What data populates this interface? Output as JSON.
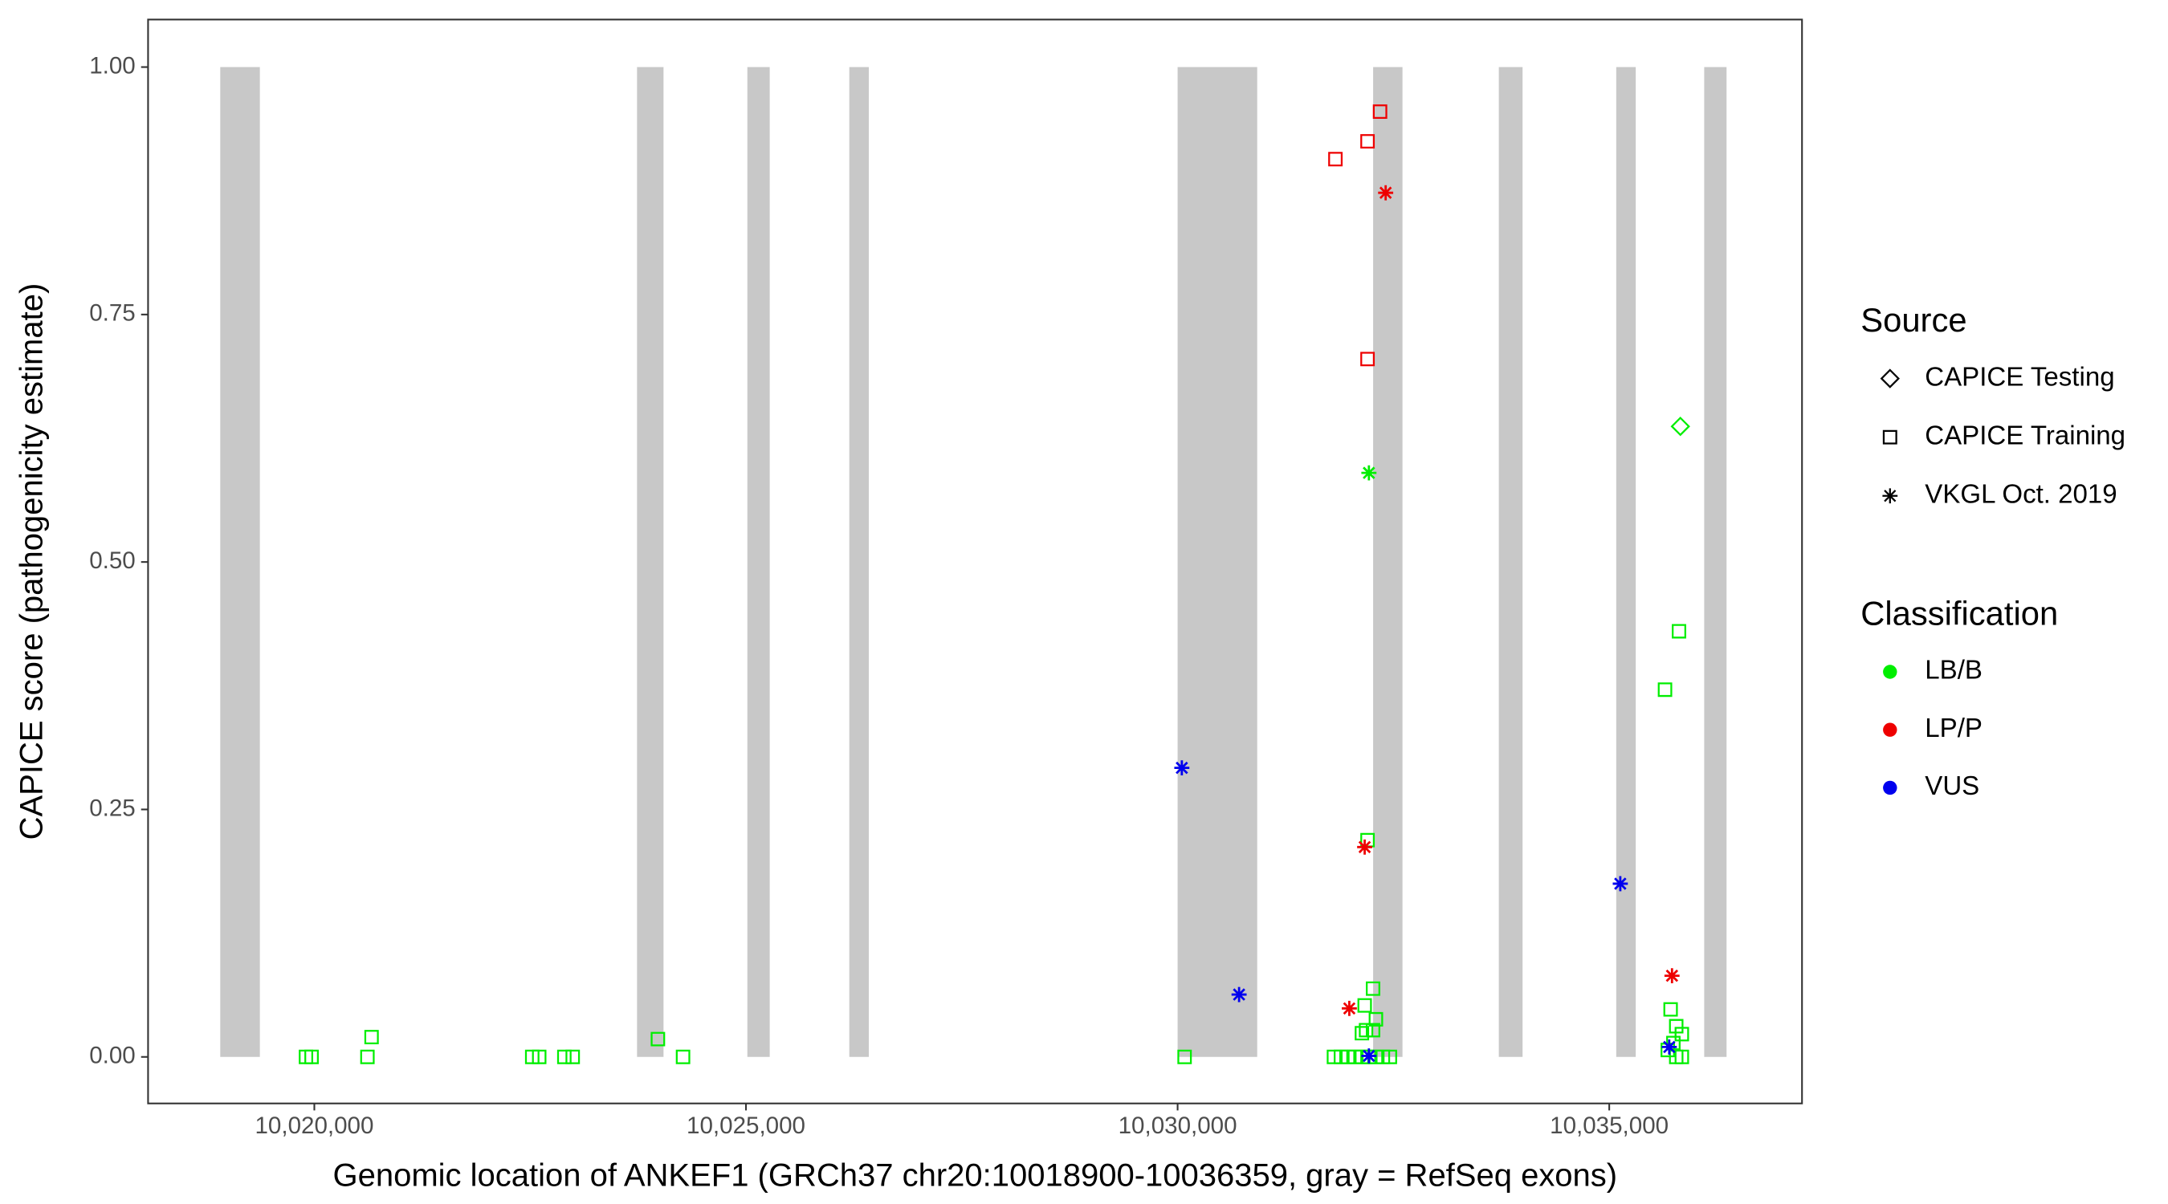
{
  "chart_data": {
    "type": "scatter",
    "x_label": "Genomic location of ANKEF1 (GRCh37 chr20:10018900-10036359, gray = RefSeq exons)",
    "y_label": "CAPICE score (pathogenicity estimate)",
    "xlim": [
      10018074,
      10037233
    ],
    "ylim": [
      -0.047,
      1.048
    ],
    "xticks": [
      {
        "value": 10020000,
        "label": "10,020,000"
      },
      {
        "value": 10025000,
        "label": "10,025,000"
      },
      {
        "value": 10030000,
        "label": "10,030,000"
      },
      {
        "value": 10035000,
        "label": "10,035,000"
      }
    ],
    "yticks": [
      {
        "value": 0,
        "label": "0.00"
      },
      {
        "value": 0.25,
        "label": "0.25"
      },
      {
        "value": 0.5,
        "label": "0.50"
      },
      {
        "value": 0.75,
        "label": "0.75"
      },
      {
        "value": 1,
        "label": "1.00"
      }
    ],
    "exon_color": "#c8c8c8",
    "exons": [
      [
        10018910,
        10019369
      ],
      [
        10023738,
        10024045
      ],
      [
        10025016,
        10025275
      ],
      [
        10026197,
        10026423
      ],
      [
        10030000,
        10030922
      ],
      [
        10032265,
        10032605
      ],
      [
        10033721,
        10033996
      ],
      [
        10035081,
        10035307
      ],
      [
        10036100,
        10036359
      ]
    ],
    "source_legend": {
      "title": "Source",
      "entries": [
        {
          "name": "CAPICE Testing",
          "shape": "diamond"
        },
        {
          "name": "CAPICE Training",
          "shape": "square"
        },
        {
          "name": "VKGL Oct. 2019",
          "shape": "star"
        }
      ]
    },
    "class_legend": {
      "title": "Classification",
      "entries": [
        {
          "name": "LB/B",
          "color": "#00ee00"
        },
        {
          "name": "LP/P",
          "color": "#ee0000"
        },
        {
          "name": "VUS",
          "color": "#0000ee"
        }
      ]
    },
    "series": [
      {
        "source": "CAPICE Training",
        "classification": "LB/B",
        "x": [
          10019903,
          10019968,
          10020615,
          10020663,
          10022524,
          10022605,
          10022896,
          10022993,
          10023980,
          10024271,
          10030081,
          10031811,
          10031892,
          10031973,
          10032054,
          10032135,
          10032216,
          10032297,
          10032378,
          10032459,
          10032135,
          10032183,
          10032264,
          10032297,
          10032167,
          10032264,
          10032200,
          10035646,
          10035808,
          10035711,
          10035776,
          10035841,
          10035743,
          10035678,
          10035776,
          10035841
        ],
        "y": [
          0,
          0,
          0,
          0.02,
          0,
          0,
          0,
          0,
          0.018,
          0,
          0,
          0,
          0,
          0,
          0,
          0,
          0,
          0,
          0,
          0,
          0.024,
          0.027,
          0.027,
          0.038,
          0.052,
          0.069,
          0.219,
          0.371,
          0.43,
          0.048,
          0.031,
          0.023,
          0.014,
          0.007,
          0,
          0
        ]
      },
      {
        "source": "CAPICE Training",
        "classification": "LP/P",
        "x": [
          10031828,
          10032200,
          10032345,
          10032200
        ],
        "y": [
          0.907,
          0.925,
          0.955,
          0.705
        ]
      },
      {
        "source": "CAPICE Testing",
        "classification": "LB/B",
        "x": [
          10035824
        ],
        "y": [
          0.637
        ]
      },
      {
        "source": "VKGL Oct. 2019",
        "classification": "LB/B",
        "x": [
          10032216
        ],
        "y": [
          0.59
        ]
      },
      {
        "source": "VKGL Oct. 2019",
        "classification": "LP/P",
        "x": [
          10032410,
          10032167,
          10031989,
          10035727
        ],
        "y": [
          0.873,
          0.212,
          0.049,
          0.082
        ]
      },
      {
        "source": "VKGL Oct. 2019",
        "classification": "VUS",
        "x": [
          10030049,
          10030712,
          10035128,
          10035695,
          10032216
        ],
        "y": [
          0.292,
          0.063,
          0.175,
          0.01,
          0.001
        ]
      }
    ]
  }
}
